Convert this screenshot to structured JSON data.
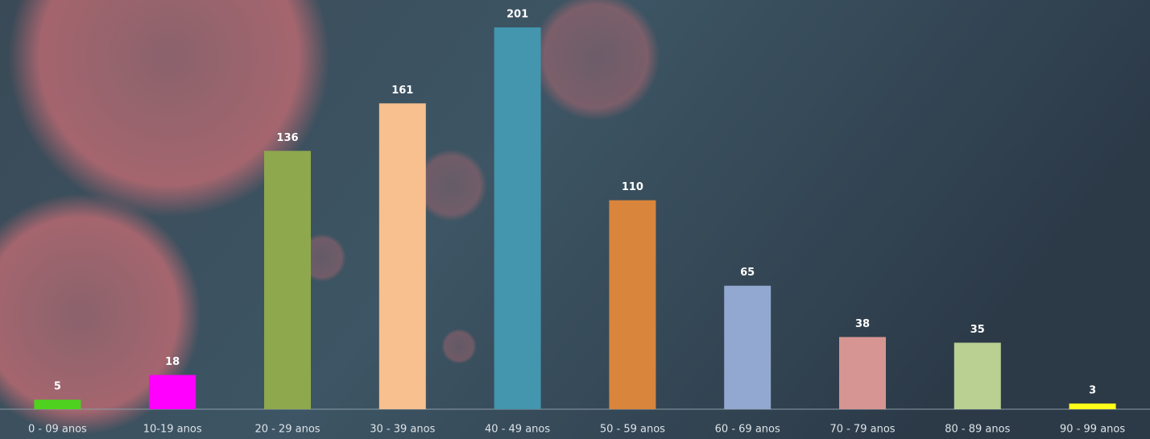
{
  "chart_data": {
    "type": "bar",
    "categories": [
      "0 - 09 anos",
      "10-19 anos",
      "20 - 29 anos",
      "30 - 39 anos",
      "40 - 49 anos",
      "50 - 59 anos",
      "60 - 69 anos",
      "70 - 79 anos",
      "80 - 89 anos",
      "90 - 99 anos"
    ],
    "values": [
      5,
      18,
      136,
      161,
      201,
      110,
      65,
      38,
      35,
      3
    ],
    "colors": [
      "#4fd11f",
      "#ff00ff",
      "#8ea84e",
      "#f7c08e",
      "#4396ad",
      "#d9853b",
      "#93a8d0",
      "#d69592",
      "#bad092",
      "#ffff1a"
    ]
  }
}
